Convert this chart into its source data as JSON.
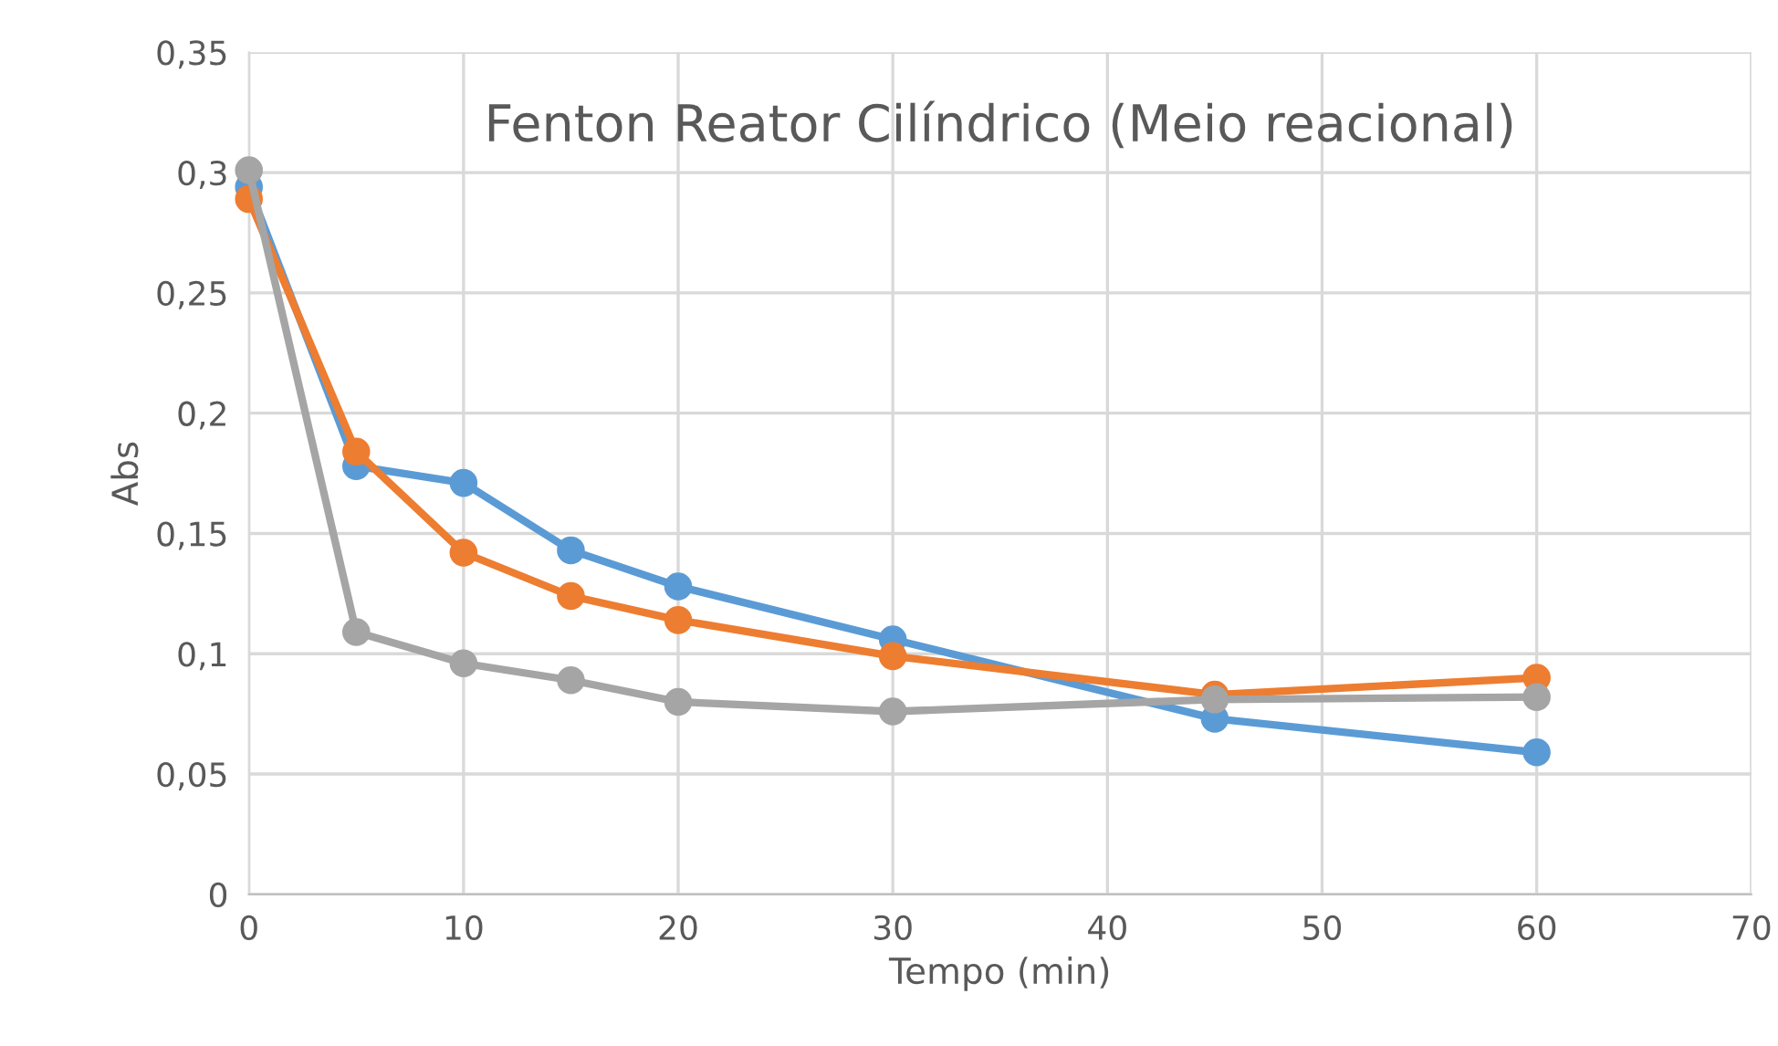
{
  "chart_data": {
    "type": "line",
    "title": "Fenton Reator Cilíndrico (Meio reacional)",
    "xlabel": "Tempo (min)",
    "ylabel": "Abs",
    "x": [
      0,
      5,
      10,
      15,
      20,
      30,
      45,
      60
    ],
    "series": [
      {
        "color": "#5b9bd5",
        "values": [
          0.294,
          0.178,
          0.171,
          0.143,
          0.128,
          0.106,
          0.073,
          0.059
        ]
      },
      {
        "color": "#ed7d31",
        "values": [
          0.289,
          0.184,
          0.142,
          0.124,
          0.114,
          0.099,
          0.083,
          0.09
        ]
      },
      {
        "color": "#a5a5a5",
        "values": [
          0.301,
          0.109,
          0.096,
          0.089,
          0.08,
          0.076,
          0.081,
          0.082
        ]
      }
    ],
    "xlim": [
      0,
      70
    ],
    "xticks": [
      0,
      10,
      20,
      30,
      40,
      50,
      60,
      70
    ],
    "ylim": [
      0,
      0.35
    ],
    "yticks": [
      0,
      {
        "value": 0.05,
        "label": "0,05"
      },
      {
        "value": 0.1,
        "label": "0,1"
      },
      {
        "value": 0.15,
        "label": "0,15"
      },
      {
        "value": 0.2,
        "label": "0,2"
      },
      {
        "value": 0.25,
        "label": "0,25"
      },
      {
        "value": 0.3,
        "label": "0,3"
      },
      {
        "value": 0.35,
        "label": "0,35"
      }
    ],
    "grid": true,
    "marker": "circle",
    "line_style": "solid"
  }
}
